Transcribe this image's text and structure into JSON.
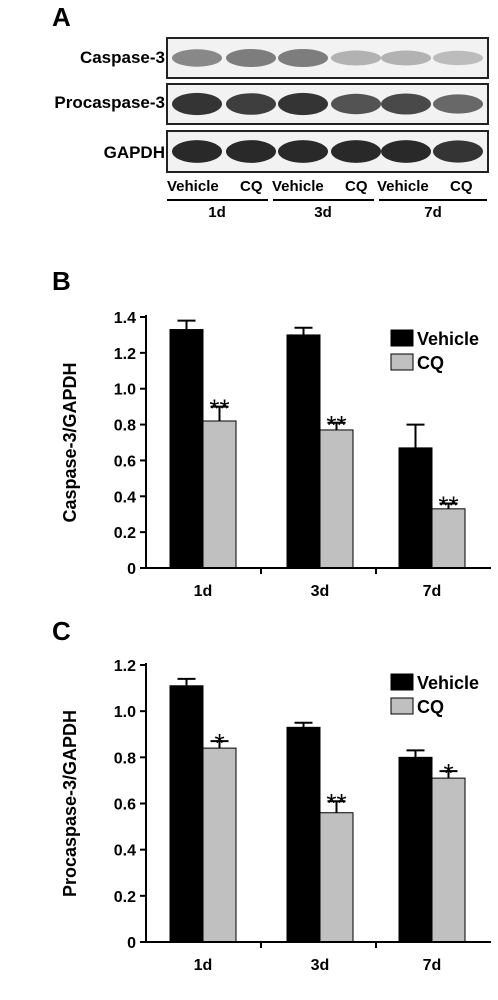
{
  "panels": {
    "a": "A",
    "b": "B",
    "c": "C"
  },
  "blot": {
    "rows": [
      {
        "label": "Caspase-3",
        "intensities": [
          0.45,
          0.5,
          0.5,
          0.25,
          0.25,
          0.2
        ]
      },
      {
        "label": "Procaspase-3",
        "intensities": [
          0.85,
          0.8,
          0.85,
          0.7,
          0.75,
          0.6
        ]
      },
      {
        "label": "GAPDH",
        "intensities": [
          0.9,
          0.9,
          0.9,
          0.9,
          0.9,
          0.85
        ]
      }
    ],
    "lanes": [
      "Vehicle",
      "CQ",
      "Vehicle",
      "CQ",
      "Vehicle",
      "CQ"
    ],
    "timepoints": [
      "1d",
      "3d",
      "7d"
    ]
  },
  "chart_data": [
    {
      "type": "bar",
      "ylabel": "Caspase-3/GAPDH",
      "categories": [
        "1d",
        "3d",
        "7d"
      ],
      "ylim": [
        0,
        1.4
      ],
      "yticks": [
        "0",
        "0.2",
        "0.4",
        "0.6",
        "0.8",
        "1.0",
        "1.2",
        "1.4"
      ],
      "legend_position": "top-right",
      "series": [
        {
          "name": "Vehicle",
          "color": "#000000",
          "values": [
            1.33,
            1.3,
            0.67
          ],
          "errors": [
            0.05,
            0.04,
            0.13
          ]
        },
        {
          "name": "CQ",
          "color": "#c0c0c0",
          "values": [
            0.82,
            0.77,
            0.33
          ],
          "errors": [
            0.08,
            0.04,
            0.03
          ]
        }
      ],
      "annotations": [
        {
          "series": 1,
          "index": 0,
          "text": "**"
        },
        {
          "series": 1,
          "index": 1,
          "text": "**"
        },
        {
          "series": 1,
          "index": 2,
          "text": "**"
        }
      ]
    },
    {
      "type": "bar",
      "ylabel": "Procaspase-3/GAPDH",
      "categories": [
        "1d",
        "3d",
        "7d"
      ],
      "ylim": [
        0,
        1.2
      ],
      "yticks": [
        "0",
        "0.2",
        "0.4",
        "0.6",
        "0.8",
        "1.0",
        "1.2"
      ],
      "legend_position": "top-right",
      "series": [
        {
          "name": "Vehicle",
          "color": "#000000",
          "values": [
            1.11,
            0.93,
            0.8
          ],
          "errors": [
            0.03,
            0.02,
            0.03
          ]
        },
        {
          "name": "CQ",
          "color": "#c0c0c0",
          "values": [
            0.84,
            0.56,
            0.71
          ],
          "errors": [
            0.03,
            0.05,
            0.03
          ]
        }
      ],
      "annotations": [
        {
          "series": 1,
          "index": 0,
          "text": "*"
        },
        {
          "series": 1,
          "index": 1,
          "text": "**"
        },
        {
          "series": 1,
          "index": 2,
          "text": "*"
        }
      ]
    }
  ]
}
